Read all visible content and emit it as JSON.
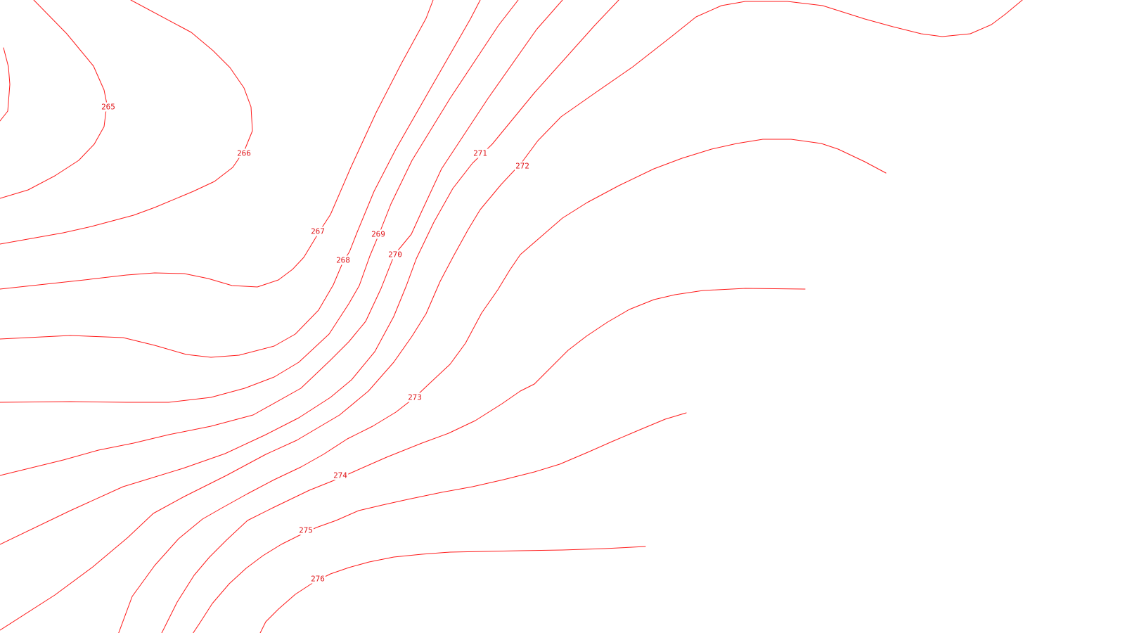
{
  "map": {
    "line_color": "#ff1a1a",
    "label_color": "#e0161a",
    "background": "#ffffff"
  },
  "contours": [
    {
      "label": "265"
    },
    {
      "label": "266"
    },
    {
      "label": "267"
    },
    {
      "label": "268"
    },
    {
      "label": "269"
    },
    {
      "label": "270"
    },
    {
      "label": "271"
    },
    {
      "label": "272"
    },
    {
      "label": "273"
    },
    {
      "label": "274"
    },
    {
      "label": "275"
    },
    {
      "label": "276"
    }
  ]
}
